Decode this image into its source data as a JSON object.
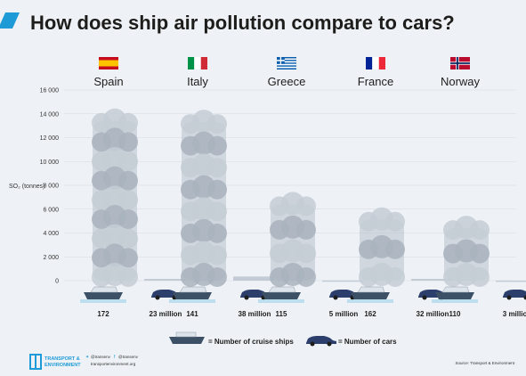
{
  "header": {
    "title": "How does ship air pollution compare to cars?"
  },
  "chart_data": {
    "type": "bar",
    "ylabel": "SO₂ (tonnes)",
    "ylim": [
      0,
      16000
    ],
    "yticks": [
      0,
      2000,
      4000,
      6000,
      8000,
      10000,
      12000,
      14000,
      16000
    ],
    "categories": [
      "Spain",
      "Italy",
      "Greece",
      "France",
      "Norway"
    ],
    "series": [
      {
        "name": "Number of cruise ships",
        "values": [
          14000,
          13900,
          7000,
          5700,
          5000
        ],
        "labels": [
          "172",
          "141",
          "115",
          "162",
          "110"
        ],
        "color": "#b8c1cb"
      },
      {
        "name": "Number of cars",
        "values": [
          150,
          350,
          20,
          150,
          10
        ],
        "labels": [
          "23 million",
          "38 million",
          "5 million",
          "32 million",
          "3 million"
        ],
        "color": "#c3ccd6"
      }
    ]
  },
  "legend": {
    "ships_label": "= Number of cruise ships",
    "cars_label": "= Number of cars"
  },
  "footer": {
    "logo_line1": "TRANSPORT &",
    "logo_line2": "ENVIRONMENT",
    "contact_twitter": "@transenv",
    "contact_facebook": "@transenv",
    "contact_web": "transportenvironment.org",
    "source": "Source: Transport & Environment"
  },
  "colors": {
    "background": "#eef2f6",
    "accent": "#1e9bd7",
    "ship_hull": "#3c5066",
    "car_body": "#2c3e6b",
    "cloud": "#b8c1cb"
  },
  "icons": [
    "flag-spain-icon",
    "flag-italy-icon",
    "flag-greece-icon",
    "flag-france-icon",
    "flag-norway-icon",
    "cruise-ship-icon",
    "car-icon",
    "twitter-icon",
    "facebook-icon"
  ]
}
